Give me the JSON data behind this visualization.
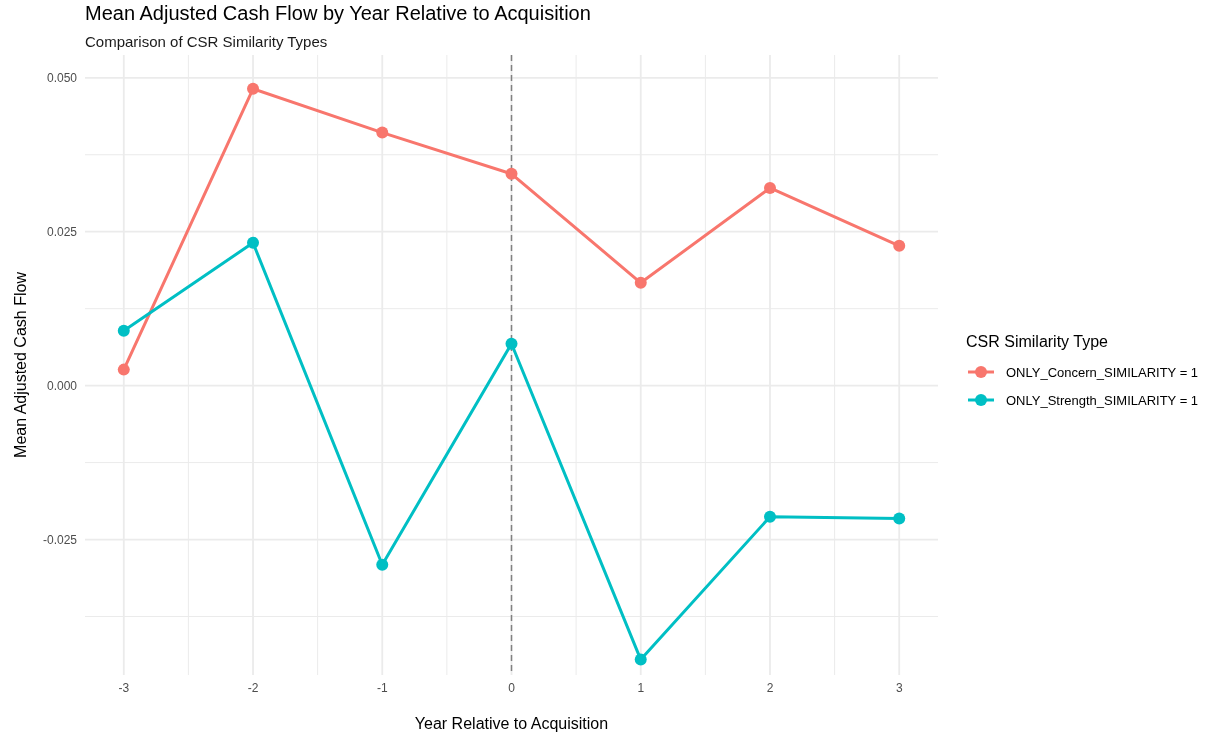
{
  "chart_data": {
    "type": "line",
    "title": "Mean Adjusted Cash Flow by Year Relative to Acquisition",
    "subtitle": "Comparison of CSR Similarity Types",
    "xlabel": "Year Relative to Acquisition",
    "ylabel": "Mean Adjusted Cash Flow",
    "legend_title": "CSR Similarity Type",
    "x": [
      -3,
      -2,
      -1,
      0,
      1,
      2,
      3
    ],
    "series": [
      {
        "name": "ONLY_Concern_SIMILARITY = 1",
        "color": "#f8766d",
        "values": [
          0.0026,
          0.0482,
          0.0411,
          0.0344,
          0.0167,
          0.0321,
          0.0227
        ]
      },
      {
        "name": "ONLY_Strength_SIMILARITY = 1",
        "color": "#00bfc4",
        "values": [
          0.0089,
          0.0232,
          -0.0291,
          0.0068,
          -0.0445,
          -0.0213,
          -0.0216
        ]
      }
    ],
    "xlim": [
      -3.3,
      3.3
    ],
    "ylim": [
      -0.047,
      0.0537
    ],
    "xticks": [
      -3,
      {
        "value": -2.5,
        "label": null
      },
      -2,
      {
        "value": -1.5,
        "label": null
      },
      -1,
      {
        "value": -0.5,
        "label": null
      },
      0,
      {
        "value": 0.5,
        "label": null
      },
      1,
      {
        "value": 1.5,
        "label": null
      },
      2,
      {
        "value": 2.5,
        "label": null
      },
      3
    ],
    "yticks": [
      {
        "value": -0.0375,
        "label": null
      },
      {
        "value": -0.025,
        "label": "-0.025"
      },
      {
        "value": -0.0125,
        "label": null
      },
      {
        "value": 0,
        "label": "0.000"
      },
      {
        "value": 0.0125,
        "label": null
      },
      {
        "value": 0.025,
        "label": "0.025"
      },
      {
        "value": 0.0375,
        "label": null
      },
      {
        "value": 0.05,
        "label": "0.050"
      }
    ],
    "ref_lines": [
      {
        "axis": "x",
        "value": 0,
        "color": "#808080",
        "line_style": "dashed"
      }
    ],
    "grid": true,
    "legend": "right",
    "marker": "circle",
    "line_style": "solid"
  }
}
